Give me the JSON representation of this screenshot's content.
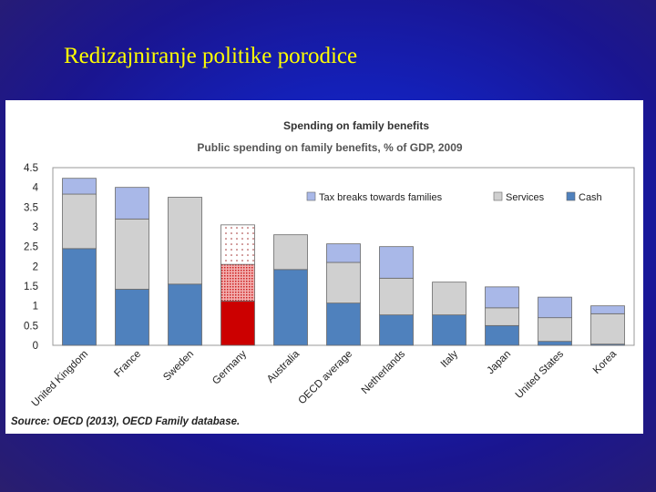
{
  "slide": {
    "title": "Redizajniranje politike porodice",
    "source_label": "Source:",
    "source_text": "OECD (2013), OECD Family database."
  },
  "colors": {
    "cash": "#4f81bd",
    "services": "#d0d0d0",
    "tax": "#a9b8e8",
    "germany_cash": "#cc0000",
    "germany_services": "#e88888",
    "germany_tax": "#ffffff"
  },
  "chart_data": {
    "type": "bar",
    "stacked": true,
    "title": "Spending on family benefits",
    "subtitle": "Public spending on family benefits, % of GDP, 2009",
    "categories": [
      "United Kingdom",
      "France",
      "Sweden",
      "Germany",
      "Australia",
      "OECD average",
      "Netherlands",
      "Italy",
      "Japan",
      "United States",
      "Korea"
    ],
    "series": [
      {
        "name": "Cash",
        "values": [
          2.45,
          1.42,
          1.55,
          1.12,
          1.92,
          1.07,
          0.77,
          0.77,
          0.5,
          0.1,
          0.03
        ]
      },
      {
        "name": "Services",
        "values": [
          1.38,
          1.78,
          2.2,
          0.93,
          0.88,
          1.03,
          0.93,
          0.83,
          0.45,
          0.6,
          0.77
        ]
      },
      {
        "name": "Tax breaks towards families",
        "values": [
          0.4,
          0.8,
          0.0,
          1.0,
          0.0,
          0.47,
          0.8,
          0.0,
          0.53,
          0.52,
          0.2
        ]
      }
    ],
    "legend": [
      "Tax breaks towards families",
      "Services",
      "Cash"
    ],
    "legend_position": "top-right",
    "yticks": [
      "0",
      "0.5",
      "1",
      "1.5",
      "2",
      "2.5",
      "3",
      "3.5",
      "4",
      "4.5"
    ],
    "ylim": [
      0,
      4.5
    ],
    "xlabel": "",
    "ylabel": ""
  }
}
